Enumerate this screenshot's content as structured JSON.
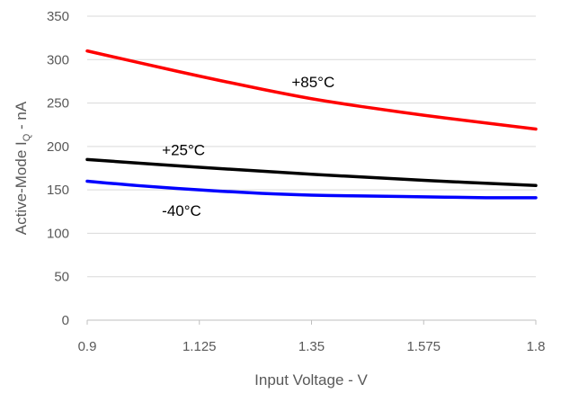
{
  "chart_data": {
    "type": "line",
    "xlabel": "Input Voltage - V",
    "ylabel_main": "Active-Mode I",
    "ylabel_sub": "Q",
    "ylabel_suffix": " - nA",
    "xlim": [
      0.9,
      1.8
    ],
    "ylim": [
      0,
      350
    ],
    "x_ticks": [
      "0.9",
      "1.125",
      "1.35",
      "1.575",
      "1.8"
    ],
    "y_ticks": [
      "0",
      "50",
      "100",
      "150",
      "200",
      "250",
      "300",
      "350"
    ],
    "grid": true,
    "series": [
      {
        "name": "+85°C",
        "color": "#ff0000",
        "x": [
          0.9,
          1.0,
          1.125,
          1.25,
          1.35,
          1.45,
          1.575,
          1.7,
          1.8
        ],
        "y": [
          310,
          297,
          281,
          266,
          255,
          246,
          236,
          227,
          220
        ]
      },
      {
        "name": "+25°C",
        "color": "#000000",
        "x": [
          0.9,
          1.125,
          1.35,
          1.575,
          1.8
        ],
        "y": [
          185,
          176,
          168,
          161,
          155
        ]
      },
      {
        "name": "-40°C",
        "color": "#0000ff",
        "x": [
          0.9,
          1.0,
          1.125,
          1.25,
          1.35,
          1.45,
          1.575,
          1.7,
          1.8
        ],
        "y": [
          160,
          155,
          150,
          146,
          144,
          143,
          142,
          141,
          141
        ]
      }
    ]
  }
}
